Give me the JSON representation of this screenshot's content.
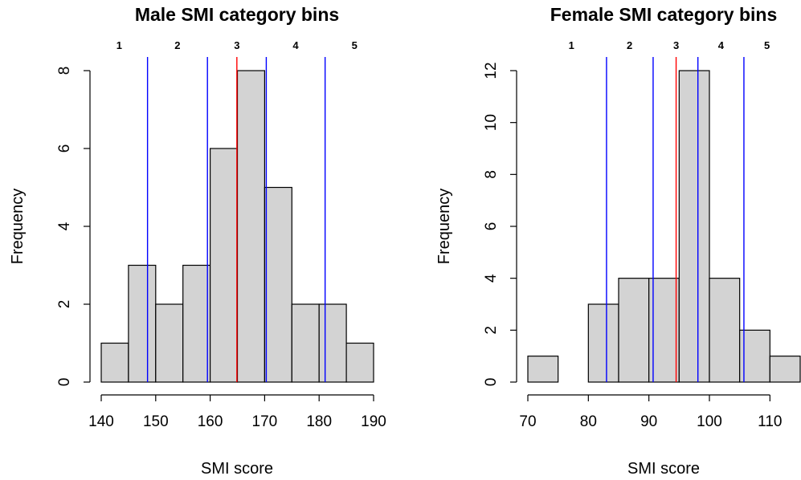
{
  "chart_data": [
    {
      "type": "bar",
      "title": "Male SMI category bins",
      "xlabel": "SMI score",
      "ylabel": "Frequency",
      "xlim": [
        140,
        190
      ],
      "ylim": [
        0,
        8
      ],
      "x_ticks": [
        "140",
        "150",
        "160",
        "170",
        "180",
        "190"
      ],
      "y_ticks": [
        "0",
        "2",
        "4",
        "6",
        "8"
      ],
      "bins": [
        {
          "from": 140,
          "to": 145,
          "count": 1
        },
        {
          "from": 145,
          "to": 150,
          "count": 3
        },
        {
          "from": 150,
          "to": 155,
          "count": 2
        },
        {
          "from": 155,
          "to": 160,
          "count": 3
        },
        {
          "from": 160,
          "to": 165,
          "count": 6
        },
        {
          "from": 165,
          "to": 170,
          "count": 8
        },
        {
          "from": 170,
          "to": 175,
          "count": 5
        },
        {
          "from": 175,
          "to": 180,
          "count": 2
        },
        {
          "from": 180,
          "to": 185,
          "count": 2
        },
        {
          "from": 185,
          "to": 190,
          "count": 1
        }
      ],
      "bar_color": "#d3d3d3",
      "category_cutoffs": [
        148.5,
        159.5,
        170.3,
        181.1
      ],
      "cutoff_color": "#0000ff",
      "mean_line": 164.9,
      "mean_color": "#ff0000",
      "category_labels": [
        {
          "label": "1",
          "x": 143.3
        },
        {
          "label": "2",
          "x": 154.0
        },
        {
          "label": "3",
          "x": 164.9
        },
        {
          "label": "4",
          "x": 175.7
        },
        {
          "label": "5",
          "x": 186.5
        }
      ]
    },
    {
      "type": "bar",
      "title": "Female SMI category bins",
      "xlabel": "SMI score",
      "ylabel": "Frequency",
      "xlim": [
        70,
        115
      ],
      "ylim": [
        0,
        12
      ],
      "x_ticks": [
        "70",
        "80",
        "90",
        "100",
        "110"
      ],
      "y_ticks": [
        "0",
        "2",
        "4",
        "6",
        "8",
        "10",
        "12"
      ],
      "bins": [
        {
          "from": 70,
          "to": 75,
          "count": 1
        },
        {
          "from": 75,
          "to": 80,
          "count": 0
        },
        {
          "from": 80,
          "to": 85,
          "count": 3
        },
        {
          "from": 85,
          "to": 90,
          "count": 4
        },
        {
          "from": 90,
          "to": 95,
          "count": 4
        },
        {
          "from": 95,
          "to": 100,
          "count": 12
        },
        {
          "from": 100,
          "to": 105,
          "count": 4
        },
        {
          "from": 105,
          "to": 110,
          "count": 2
        },
        {
          "from": 110,
          "to": 115,
          "count": 1
        }
      ],
      "bar_color": "#d3d3d3",
      "category_cutoffs": [
        83.0,
        90.7,
        98.1,
        105.7
      ],
      "cutoff_color": "#0000ff",
      "mean_line": 94.5,
      "mean_color": "#ff0000",
      "category_labels": [
        {
          "label": "1",
          "x": 77.2
        },
        {
          "label": "2",
          "x": 86.8
        },
        {
          "label": "3",
          "x": 94.5
        },
        {
          "label": "4",
          "x": 101.9
        },
        {
          "label": "5",
          "x": 109.5
        }
      ]
    }
  ]
}
